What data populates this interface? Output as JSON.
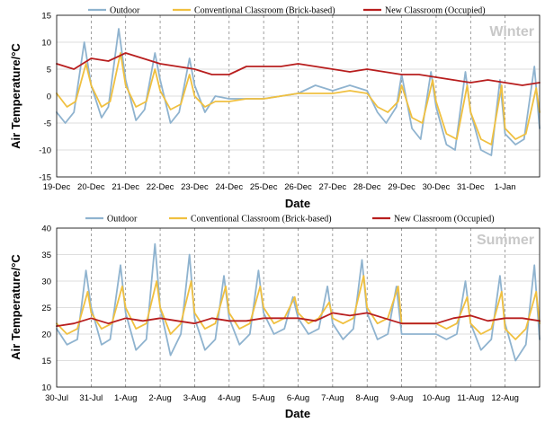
{
  "chart_data": [
    {
      "type": "line",
      "title": "Winter",
      "xlabel": "Date",
      "ylabel": "Air Temperature/°C",
      "ylim": [
        -15,
        15
      ],
      "yticks": [
        15,
        10,
        5,
        0,
        -5,
        -10,
        -15
      ],
      "grid": true,
      "legend": "top",
      "categories": [
        "19-Dec",
        "20-Dec",
        "21-Dec",
        "22-Dec",
        "23-Dec",
        "24-Dec",
        "25-Dec",
        "26-Dec",
        "27-Dec",
        "28-Dec",
        "29-Dec",
        "30-Dec",
        "31-Dec",
        "1-Jan"
      ],
      "series": [
        {
          "name": "Outdoor",
          "color": "#8fb3cf",
          "x": [
            0,
            0.25,
            0.5,
            0.8,
            1.0,
            1.3,
            1.5,
            1.8,
            2.0,
            2.3,
            2.55,
            2.85,
            3.0,
            3.3,
            3.55,
            3.85,
            4.0,
            4.3,
            4.6,
            5.0,
            5.5,
            6.0,
            6.5,
            7.0,
            7.5,
            8.0,
            8.5,
            9.0,
            9.3,
            9.55,
            9.85,
            10.0,
            10.3,
            10.55,
            10.85,
            11.0,
            11.3,
            11.55,
            11.85,
            12.0,
            12.3,
            12.6,
            12.85,
            13.0,
            13.3,
            13.55,
            13.85,
            14.0
          ],
          "values": [
            -3,
            -5,
            -3,
            10,
            2,
            -4,
            -2,
            12.5,
            3,
            -4.5,
            -2.5,
            8,
            3,
            -5,
            -3,
            7,
            2,
            -3,
            0,
            -0.5,
            -0.5,
            -0.5,
            0,
            0.5,
            2,
            1,
            2,
            1,
            -3,
            -5,
            -2,
            4,
            -6,
            -8,
            4.5,
            -2,
            -9,
            -10,
            4.5,
            -3,
            -10,
            -11,
            3,
            -7,
            -9,
            -8,
            5.5,
            -6
          ]
        },
        {
          "name": "Conventional Classroom (Brick-based)",
          "color": "#f0c040",
          "x": [
            0,
            0.3,
            0.55,
            0.85,
            1.0,
            1.3,
            1.55,
            1.85,
            2.0,
            2.3,
            2.6,
            2.85,
            3.0,
            3.3,
            3.6,
            3.85,
            4.0,
            4.3,
            4.6,
            5.0,
            5.5,
            6.0,
            6.5,
            7.0,
            7.5,
            8.0,
            8.5,
            9.0,
            9.3,
            9.6,
            9.9,
            10.0,
            10.3,
            10.6,
            10.9,
            11.0,
            11.3,
            11.6,
            11.9,
            12.0,
            12.3,
            12.6,
            12.9,
            13.0,
            13.3,
            13.6,
            13.9,
            14.0
          ],
          "values": [
            0.5,
            -2,
            -1,
            6,
            2,
            -2,
            -1,
            8,
            2,
            -2,
            -1,
            5,
            1,
            -2.5,
            -1.5,
            4,
            0,
            -2,
            -1,
            -1,
            -0.5,
            -0.5,
            0,
            0.5,
            0.5,
            0.5,
            1,
            0.5,
            -2,
            -3,
            -1,
            2,
            -4,
            -5,
            3,
            -1,
            -7,
            -8,
            2,
            -3,
            -8,
            -9,
            2,
            -6,
            -8,
            -7,
            1.5,
            -3
          ]
        },
        {
          "name": "New Classroom (Occupied)",
          "color": "#b81e1e",
          "x": [
            0,
            0.5,
            1.0,
            1.5,
            2.0,
            2.5,
            3.0,
            3.5,
            4.0,
            4.5,
            5.0,
            5.5,
            6.0,
            6.5,
            7.0,
            7.5,
            8.0,
            8.5,
            9.0,
            9.5,
            10.0,
            10.5,
            11.0,
            11.5,
            12.0,
            12.5,
            13.0,
            13.5,
            14.0
          ],
          "values": [
            6,
            5,
            7,
            6.5,
            8,
            7,
            6,
            5.5,
            5,
            4,
            4,
            5.5,
            5.5,
            5.5,
            6,
            5.5,
            5,
            4.5,
            5,
            4.5,
            4,
            4,
            3.5,
            3,
            2.5,
            3,
            2.5,
            2,
            2.5
          ]
        }
      ]
    },
    {
      "type": "line",
      "title": "Summer",
      "xlabel": "Date",
      "ylabel": "Air Temperature/°C",
      "ylim": [
        10,
        40
      ],
      "yticks": [
        40,
        35,
        30,
        25,
        20,
        15,
        10
      ],
      "grid": true,
      "legend": "top",
      "categories": [
        "30-Jul",
        "31-Jul",
        "1-Aug",
        "2-Aug",
        "3-Aug",
        "4-Aug",
        "5-Aug",
        "6-Aug",
        "7-Aug",
        "8-Aug",
        "9-Aug",
        "10-Aug",
        "11-Aug",
        "12-Aug"
      ],
      "series": [
        {
          "name": "Outdoor",
          "color": "#8fb3cf",
          "x": [
            0,
            0.3,
            0.6,
            0.85,
            1.0,
            1.3,
            1.55,
            1.85,
            2.0,
            2.3,
            2.6,
            2.85,
            3.0,
            3.3,
            3.6,
            3.85,
            4.0,
            4.3,
            4.6,
            4.85,
            5.0,
            5.3,
            5.6,
            5.85,
            6.0,
            6.3,
            6.6,
            6.85,
            7.0,
            7.3,
            7.6,
            7.85,
            8.0,
            8.3,
            8.6,
            8.85,
            9.0,
            9.3,
            9.6,
            9.85,
            10.0,
            10.3,
            10.6,
            10.85,
            11.0,
            11.3,
            11.6,
            11.85,
            12.0,
            12.3,
            12.6,
            12.85,
            13.0,
            13.3,
            13.6,
            13.85,
            14.0
          ],
          "values": [
            21,
            18,
            19,
            32,
            25,
            18,
            19,
            33,
            24,
            17,
            19,
            37,
            25,
            16,
            20,
            35,
            23,
            17,
            19,
            31,
            23,
            18,
            20,
            32,
            24,
            20,
            21,
            27,
            23,
            20,
            21,
            29,
            22,
            19,
            21,
            34,
            24,
            19,
            20,
            29,
            20,
            20,
            20,
            20,
            20,
            19,
            20,
            30,
            22,
            17,
            19,
            31,
            22,
            15,
            18,
            33,
            19
          ]
        },
        {
          "name": "Conventional Classroom (Brick-based)",
          "color": "#f0c040",
          "x": [
            0,
            0.3,
            0.6,
            0.9,
            1.0,
            1.3,
            1.6,
            1.9,
            2.0,
            2.3,
            2.6,
            2.9,
            3.0,
            3.3,
            3.6,
            3.9,
            4.0,
            4.3,
            4.6,
            4.9,
            5.0,
            5.3,
            5.6,
            5.9,
            6.0,
            6.3,
            6.6,
            6.9,
            7.0,
            7.3,
            7.6,
            7.9,
            8.0,
            8.3,
            8.6,
            8.9,
            9.0,
            9.3,
            9.6,
            9.9,
            10.0,
            10.3,
            10.6,
            10.9,
            11.0,
            11.3,
            11.6,
            11.9,
            12.0,
            12.3,
            12.6,
            12.9,
            13.0,
            13.3,
            13.6,
            13.9,
            14.0
          ],
          "values": [
            22,
            20,
            21,
            28,
            24,
            21,
            22,
            29,
            25,
            21,
            22,
            30,
            25,
            20,
            22,
            30,
            24,
            21,
            22,
            29,
            24,
            21,
            22,
            29,
            25,
            22,
            23,
            27,
            24,
            22,
            23,
            26,
            23,
            22,
            23,
            31,
            25,
            22,
            23,
            29,
            22,
            22,
            22,
            22,
            22,
            21,
            22,
            27,
            22,
            20,
            21,
            28,
            21,
            19,
            21,
            28,
            22
          ]
        },
        {
          "name": "New Classroom (Occupied)",
          "color": "#b81e1e",
          "x": [
            0,
            0.5,
            1.0,
            1.5,
            2.0,
            2.5,
            3.0,
            3.5,
            4.0,
            4.5,
            5.0,
            5.5,
            6.0,
            6.5,
            7.0,
            7.5,
            8.0,
            8.5,
            9.0,
            9.5,
            10.0,
            10.5,
            11.0,
            11.5,
            12.0,
            12.5,
            13.0,
            13.5,
            14.0
          ],
          "values": [
            21.5,
            22,
            23,
            22,
            23,
            22.5,
            23,
            22.5,
            22,
            23,
            22.5,
            22.5,
            23,
            23,
            23,
            22.5,
            24,
            23.5,
            24,
            23,
            22,
            22,
            22,
            23,
            23.5,
            22.5,
            23,
            23,
            22.5
          ]
        }
      ]
    }
  ]
}
